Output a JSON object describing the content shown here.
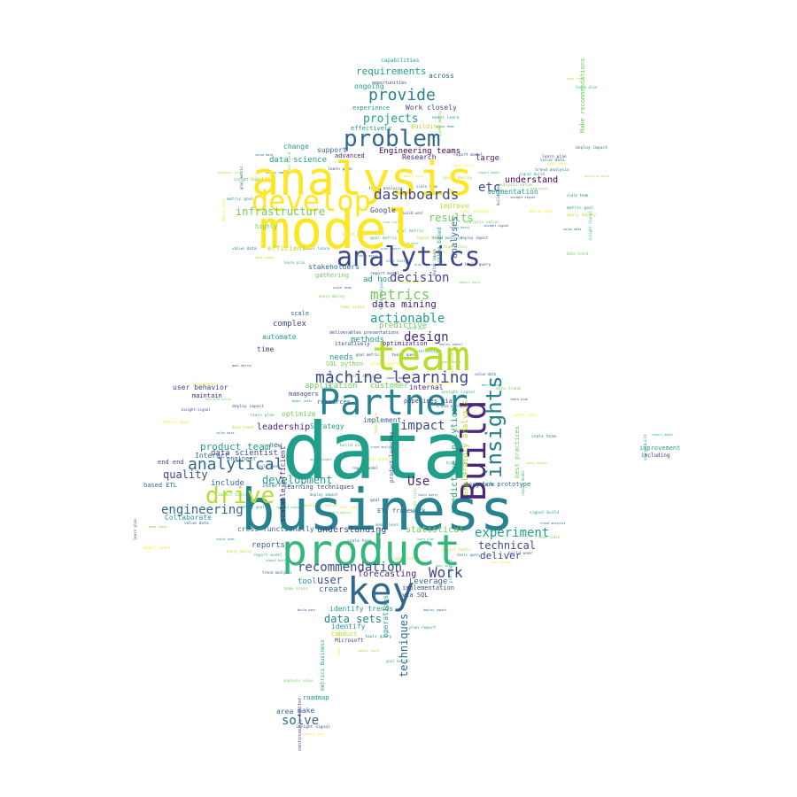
{
  "palette": {
    "yellow": "#fde725",
    "lime": "#b5de2b",
    "green": "#6ece58",
    "teal_green": "#35b779",
    "teal": "#1f9e89",
    "cyan": "#26828e",
    "blue": "#31688e",
    "indigo": "#3e4989",
    "purple": "#482878",
    "dark": "#440154",
    "background": "#ffffff"
  },
  "words": [
    {
      "text": "data",
      "color": "teal"
    },
    {
      "text": "business",
      "color": "cyan"
    },
    {
      "text": "model",
      "color": "yellow"
    },
    {
      "text": "product",
      "color": "teal_green"
    },
    {
      "text": "analysis",
      "color": "yellow"
    },
    {
      "text": "team",
      "color": "lime"
    },
    {
      "text": "Partner",
      "color": "cyan"
    },
    {
      "text": "key",
      "color": "blue"
    },
    {
      "text": "Build",
      "color": "purple"
    },
    {
      "text": "develop",
      "color": "yellow"
    },
    {
      "text": "analytics",
      "color": "indigo"
    },
    {
      "text": "problem",
      "color": "blue"
    },
    {
      "text": "drive",
      "color": "lime"
    },
    {
      "text": "insights",
      "color": "cyan"
    },
    {
      "text": "machine learning",
      "color": "indigo"
    },
    {
      "text": "dashboards",
      "color": "indigo"
    },
    {
      "text": "analytical",
      "color": "blue"
    },
    {
      "text": "metrics",
      "color": "green"
    },
    {
      "text": "provide",
      "color": "cyan"
    },
    {
      "text": "Work",
      "color": "indigo"
    },
    {
      "text": "experiment",
      "color": "teal"
    },
    {
      "text": "recommendation",
      "color": "indigo"
    },
    {
      "text": "design",
      "color": "purple"
    },
    {
      "text": "decision",
      "color": "indigo"
    },
    {
      "text": "engineering",
      "color": "blue"
    },
    {
      "text": "actionable",
      "color": "teal"
    },
    {
      "text": "impact",
      "color": "indigo"
    },
    {
      "text": "development",
      "color": "teal"
    },
    {
      "text": "infrastructure",
      "color": "green"
    },
    {
      "text": "projects",
      "color": "teal"
    },
    {
      "text": "requirements",
      "color": "teal"
    },
    {
      "text": "quality",
      "color": "indigo"
    },
    {
      "text": "data mining",
      "color": "purple"
    },
    {
      "text": "etc",
      "color": "indigo"
    },
    {
      "text": "solve",
      "color": "blue"
    },
    {
      "text": "Use",
      "color": "purple"
    },
    {
      "text": "data sets",
      "color": "cyan"
    },
    {
      "text": "techniques",
      "color": "blue"
    },
    {
      "text": "results",
      "color": "green"
    },
    {
      "text": "technical",
      "color": "indigo"
    },
    {
      "text": "deliver",
      "color": "indigo"
    },
    {
      "text": "product team",
      "color": "teal"
    },
    {
      "text": "understand",
      "color": "dark"
    },
    {
      "text": "Engineering teams",
      "color": "dark"
    },
    {
      "text": "data science",
      "color": "teal"
    },
    {
      "text": "predictive analytics",
      "color": "teal"
    },
    {
      "text": "exploratory analysis",
      "color": "lime"
    },
    {
      "text": "analyses",
      "color": "blue"
    },
    {
      "text": "user",
      "color": "indigo"
    },
    {
      "text": "forecasting",
      "color": "purple"
    },
    {
      "text": "Leverage",
      "color": "blue"
    },
    {
      "text": "statistical",
      "color": "green"
    },
    {
      "text": "understanding",
      "color": "indigo"
    },
    {
      "text": "cross functionally",
      "color": "blue"
    },
    {
      "text": "reports",
      "color": "blue"
    },
    {
      "text": "include",
      "color": "blue"
    },
    {
      "text": "leadership",
      "color": "purple"
    },
    {
      "text": "data scientist",
      "color": "indigo"
    },
    {
      "text": "Interact",
      "color": "blue"
    },
    {
      "text": "end end",
      "color": "indigo"
    },
    {
      "text": "based ETL",
      "color": "blue"
    },
    {
      "text": "Collaborate",
      "color": "teal"
    },
    {
      "text": "user behavior",
      "color": "indigo"
    },
    {
      "text": "maintain",
      "color": "purple"
    },
    {
      "text": "application",
      "color": "green"
    },
    {
      "text": "customer",
      "color": "green"
    },
    {
      "text": "internal",
      "color": "purple"
    },
    {
      "text": "managers",
      "color": "indigo"
    },
    {
      "text": "resources",
      "color": "blue"
    },
    {
      "text": "optimize",
      "color": "green"
    },
    {
      "text": "implement",
      "color": "blue"
    },
    {
      "text": "Strategy",
      "color": "teal"
    },
    {
      "text": "new",
      "color": "blue"
    },
    {
      "text": "engineer",
      "color": "blue"
    },
    {
      "text": "methods",
      "color": "teal"
    },
    {
      "text": "needs",
      "color": "teal"
    },
    {
      "text": "SQL python",
      "color": "green"
    },
    {
      "text": "predictive",
      "color": "green"
    },
    {
      "text": "complex",
      "color": "indigo"
    },
    {
      "text": "scale",
      "color": "blue"
    },
    {
      "text": "automate",
      "color": "teal"
    },
    {
      "text": "time",
      "color": "indigo"
    },
    {
      "text": "stakeholders",
      "color": "blue"
    },
    {
      "text": "gathering",
      "color": "green"
    },
    {
      "text": "ad hoc",
      "color": "teal"
    },
    {
      "text": "efficient",
      "color": "lime"
    },
    {
      "text": "highly",
      "color": "green"
    },
    {
      "text": "Google",
      "color": "indigo"
    },
    {
      "text": "improve",
      "color": "lime"
    },
    {
      "text": "segmentation",
      "color": "teal"
    },
    {
      "text": "change",
      "color": "teal"
    },
    {
      "text": "support",
      "color": "blue"
    },
    {
      "text": "advanced",
      "color": "purple"
    },
    {
      "text": "Research",
      "color": "purple"
    },
    {
      "text": "large",
      "color": "purple"
    },
    {
      "text": "Work closely",
      "color": "indigo"
    },
    {
      "text": "ongoing",
      "color": "teal"
    },
    {
      "text": "across",
      "color": "blue"
    },
    {
      "text": "experience",
      "color": "teal"
    },
    {
      "text": "effectively",
      "color": "teal"
    },
    {
      "text": "Building",
      "color": "lime"
    },
    {
      "text": "capabilities",
      "color": "teal"
    },
    {
      "text": "opportunities",
      "color": "indigo"
    },
    {
      "text": "create",
      "color": "blue"
    },
    {
      "text": "tool",
      "color": "teal"
    },
    {
      "text": "identify trends",
      "color": "teal"
    },
    {
      "text": "identify",
      "color": "teal"
    },
    {
      "text": "Conduct",
      "color": "lime"
    },
    {
      "text": "Microsoft",
      "color": "indigo"
    },
    {
      "text": "metrics Business",
      "color": "teal"
    },
    {
      "text": "roadmap",
      "color": "teal"
    },
    {
      "text": "make",
      "color": "blue"
    },
    {
      "text": "area",
      "color": "blue"
    },
    {
      "text": "continuously monitor",
      "color": "purple"
    },
    {
      "text": "operations",
      "color": "teal"
    },
    {
      "text": "implementation",
      "color": "indigo"
    },
    {
      "text": "via SQL",
      "color": "indigo"
    },
    {
      "text": "improvement",
      "color": "teal"
    },
    {
      "text": "including",
      "color": "indigo"
    },
    {
      "text": "Make recommendations",
      "color": "green"
    },
    {
      "text": "best practices",
      "color": "green"
    },
    {
      "text": "python based",
      "color": "teal"
    },
    {
      "text": "pipelines via",
      "color": "indigo"
    },
    {
      "text": "product launches",
      "color": "indigo"
    },
    {
      "text": "quick prototype",
      "color": "blue"
    },
    {
      "text": "long term",
      "color": "blue"
    },
    {
      "text": "ETL framework",
      "color": "blue"
    },
    {
      "text": "scalable efficient",
      "color": "purple"
    },
    {
      "text": "learning techniques",
      "color": "indigo"
    },
    {
      "text": "interface",
      "color": "blue"
    },
    {
      "text": "optimization",
      "color": "purple"
    },
    {
      "text": "iteratively",
      "color": "indigo"
    },
    {
      "text": "deliverables presentations",
      "color": "indigo"
    }
  ]
}
